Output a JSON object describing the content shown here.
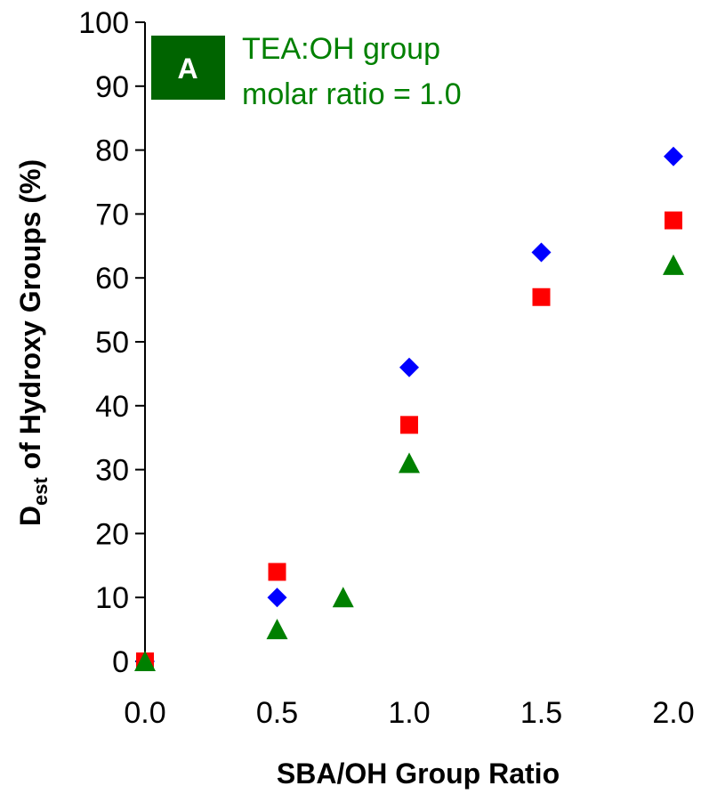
{
  "chart_data": {
    "type": "scatter",
    "title": "",
    "xlabel": "SBA/OH Group Ratio",
    "ylabel_main": "D",
    "ylabel_sub": "est",
    "ylabel_rest": " of Hydroxy Groups (%)",
    "xlim": [
      0.0,
      2.0
    ],
    "ylim": [
      0,
      100
    ],
    "x_ticks": [
      "0.0",
      "0.5",
      "1.0",
      "1.5",
      "2.0"
    ],
    "y_ticks": [
      "0",
      "10",
      "20",
      "30",
      "40",
      "50",
      "60",
      "70",
      "80",
      "90",
      "100"
    ],
    "grid": false,
    "legend": null,
    "panel_label": "A",
    "annotation_line1": "TEA:OH group",
    "annotation_line2": "molar ratio = 1.0",
    "annotation_color": "#008000",
    "panel_box_color": "#006400",
    "series": [
      {
        "marker": "diamond",
        "color": "#0000FF",
        "x": [
          0.0,
          0.5,
          1.0,
          1.5,
          2.0
        ],
        "y": [
          0,
          10,
          46,
          64,
          79
        ]
      },
      {
        "marker": "square",
        "color": "#FF0000",
        "x": [
          0.0,
          0.5,
          1.0,
          1.5,
          2.0
        ],
        "y": [
          0,
          14,
          37,
          57,
          69
        ]
      },
      {
        "marker": "triangle",
        "color": "#008000",
        "x": [
          0.0,
          0.5,
          0.75,
          1.0,
          2.0
        ],
        "y": [
          0,
          5,
          10,
          31,
          62
        ]
      }
    ]
  }
}
